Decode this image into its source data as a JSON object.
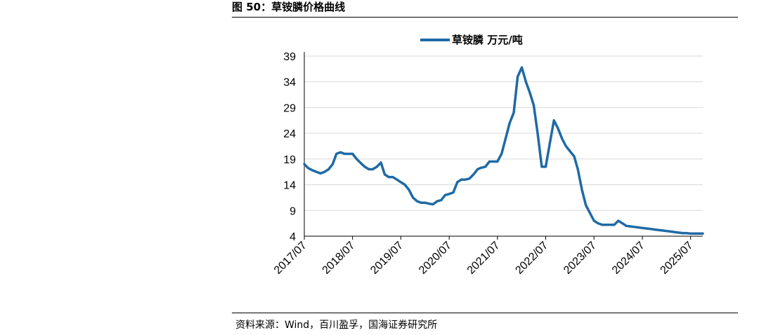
{
  "header": {
    "figure_title": "图 50：草铵膦价格曲线"
  },
  "footer": {
    "source": "资料来源：Wind，百川盈孚，国海证券研究所"
  },
  "colors": {
    "series": "#1f6aa5",
    "grid": "#d9d9d9",
    "axis": "#000000"
  },
  "chart_data": {
    "type": "line",
    "title": "",
    "xlabel": "",
    "ylabel": "",
    "legend_position": "top-center",
    "grid": "horizontal",
    "ylim": [
      4,
      39
    ],
    "y_ticks": [
      "39",
      "34",
      "29",
      "24",
      "19",
      "14",
      "9",
      "4"
    ],
    "x_ticks": [
      "2017/07",
      "2018/07",
      "2019/07",
      "2020/07",
      "2021/07",
      "2022/07",
      "2023/07",
      "2024/07",
      "2025/07"
    ],
    "series": [
      {
        "name": "草铵膦 万元/吨",
        "x": [
          "2017-07-01",
          "2017-08-01",
          "2017-09-01",
          "2017-10-01",
          "2017-11-01",
          "2017-12-01",
          "2018-01-01",
          "2018-02-01",
          "2018-03-01",
          "2018-04-01",
          "2018-05-01",
          "2018-06-01",
          "2018-07-01",
          "2018-08-01",
          "2018-09-01",
          "2018-10-01",
          "2018-11-01",
          "2018-12-01",
          "2019-01-01",
          "2019-02-01",
          "2019-03-01",
          "2019-04-01",
          "2019-05-01",
          "2019-06-01",
          "2019-07-01",
          "2019-08-01",
          "2019-09-01",
          "2019-10-01",
          "2019-11-01",
          "2019-12-01",
          "2020-01-01",
          "2020-02-01",
          "2020-03-01",
          "2020-04-01",
          "2020-05-01",
          "2020-06-01",
          "2020-07-01",
          "2020-08-01",
          "2020-09-01",
          "2020-10-01",
          "2020-11-01",
          "2020-12-01",
          "2021-01-01",
          "2021-02-01",
          "2021-03-01",
          "2021-04-01",
          "2021-05-01",
          "2021-06-01",
          "2021-07-01",
          "2021-08-01",
          "2021-09-01",
          "2021-10-01",
          "2021-11-01",
          "2021-12-01",
          "2022-01-01",
          "2022-02-01",
          "2022-03-01",
          "2022-04-01",
          "2022-05-01",
          "2022-06-01",
          "2022-07-01",
          "2022-08-01",
          "2022-09-01",
          "2022-10-01",
          "2022-11-01",
          "2022-12-01",
          "2023-01-01",
          "2023-02-01",
          "2023-03-01",
          "2023-04-01",
          "2023-05-01",
          "2023-06-01",
          "2023-07-01",
          "2023-08-01",
          "2023-09-01",
          "2023-10-01",
          "2023-11-01",
          "2023-12-01",
          "2024-01-01",
          "2024-02-01",
          "2024-03-01",
          "2024-04-01",
          "2024-05-01",
          "2024-06-01",
          "2024-07-01",
          "2024-08-01",
          "2024-09-01",
          "2024-10-01",
          "2024-11-01",
          "2024-12-01",
          "2025-01-01",
          "2025-02-01",
          "2025-03-01",
          "2025-04-01",
          "2025-05-01",
          "2025-06-01",
          "2025-07-01",
          "2025-08-01",
          "2025-09-01",
          "2025-10-01"
        ],
        "values": [
          18.0,
          17.2,
          16.8,
          16.5,
          16.2,
          16.5,
          17.0,
          18.0,
          20.0,
          20.3,
          20.0,
          20.0,
          20.0,
          19.0,
          18.2,
          17.5,
          17.0,
          17.0,
          17.5,
          18.3,
          16.0,
          15.5,
          15.5,
          15.0,
          14.5,
          14.0,
          13.0,
          11.5,
          10.8,
          10.5,
          10.5,
          10.3,
          10.2,
          10.8,
          11.0,
          12.0,
          12.2,
          12.5,
          14.5,
          15.0,
          15.0,
          15.2,
          16.0,
          17.0,
          17.3,
          17.5,
          18.5,
          18.5,
          18.5,
          20.0,
          23.0,
          26.0,
          28.0,
          35.0,
          36.8,
          34.0,
          32.0,
          29.5,
          24.0,
          17.5,
          17.5,
          22.0,
          26.5,
          25.0,
          23.0,
          21.5,
          20.5,
          19.5,
          17.0,
          13.0,
          10.0,
          8.5,
          7.0,
          6.5,
          6.2,
          6.2,
          6.2,
          6.2,
          7.0,
          6.5,
          6.0,
          5.9,
          5.8,
          5.7,
          5.6,
          5.5,
          5.4,
          5.3,
          5.2,
          5.1,
          5.0,
          4.9,
          4.8,
          4.7,
          4.6,
          4.6,
          4.5,
          4.5,
          4.5,
          4.5
        ]
      }
    ]
  }
}
